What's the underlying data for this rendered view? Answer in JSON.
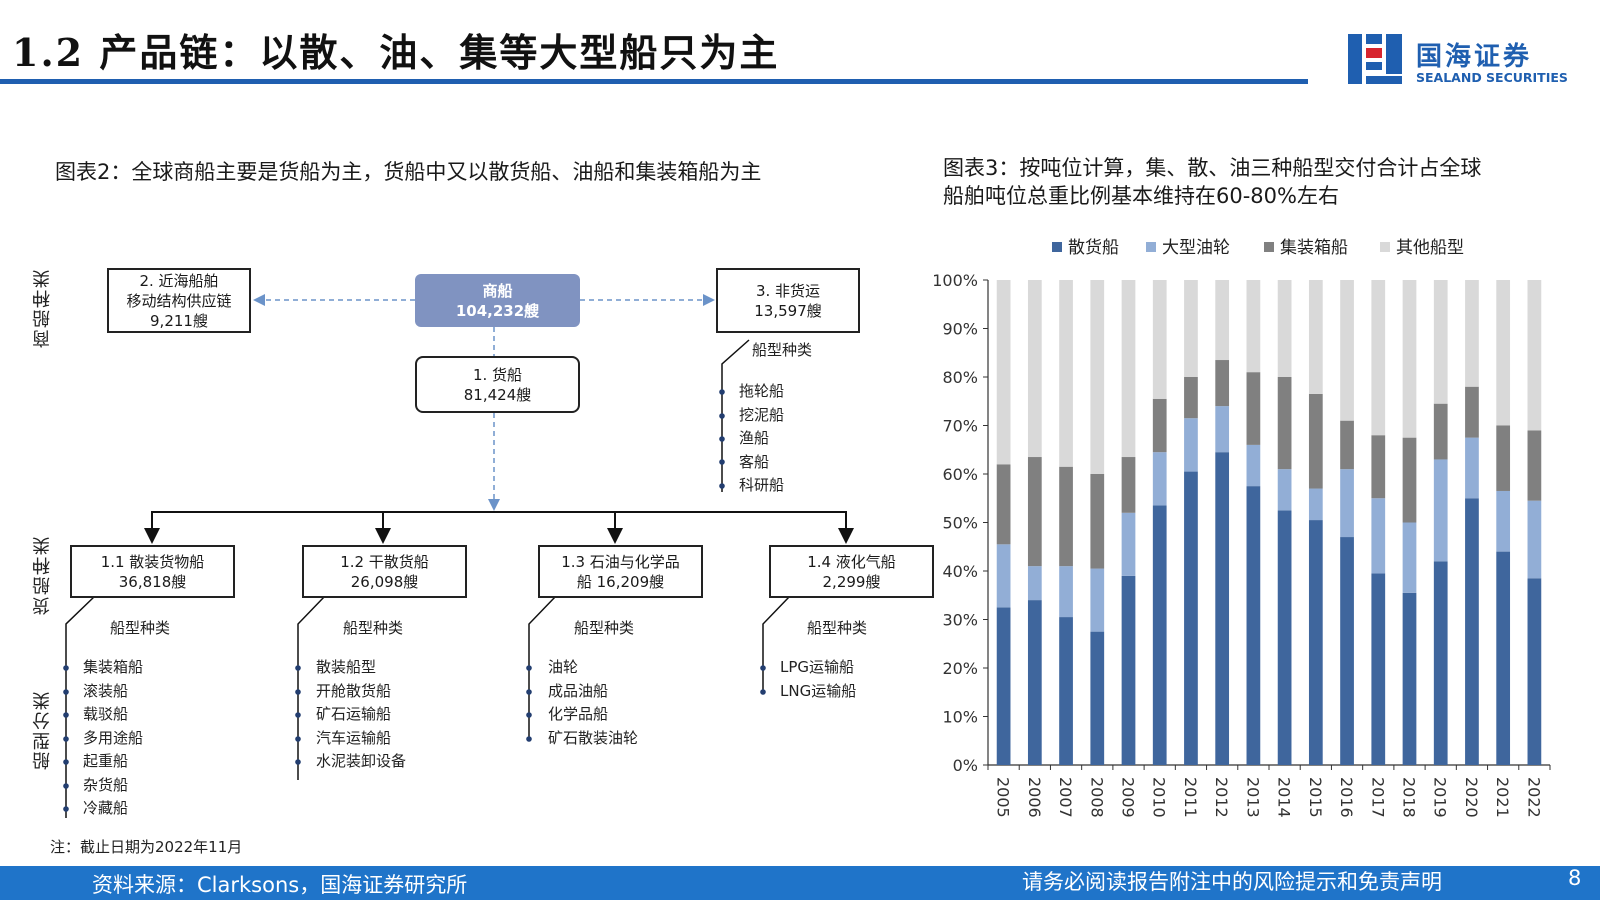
{
  "header": {
    "title": "1.2 产品链：以散、油、集等大型船只为主",
    "logo_cn": "国海证券",
    "logo_en": "SEALAND SECURITIES"
  },
  "figure2": {
    "title": "图表2：全球商船主要是货船为主，货船中又以散货船、油船和集装箱船为主",
    "side_labels": {
      "top": "商船种类",
      "middle": "货船种类",
      "bottom": "船型分类"
    },
    "root": {
      "line1": "商船",
      "line2": "104,232艘"
    },
    "near_sea": {
      "line1": "2. 近海船舶",
      "line2": "移动结构供应链",
      "line3": "9,211艘"
    },
    "non_cargo": {
      "line1": "3. 非货运",
      "line2": "13,597艘",
      "sub_label": "船型种类",
      "items": [
        "拖轮船",
        "挖泥船",
        "渔船",
        "客船",
        "科研船"
      ]
    },
    "cargo": {
      "line1": "1.    货船",
      "line2": "81,424艘"
    },
    "categories": [
      {
        "line1": "1.1 散装货物船",
        "line2": "36,818艘",
        "sub_label": "船型种类",
        "items": [
          "集装箱船",
          "滚装船",
          "载驳船",
          "多用途船",
          "起重船",
          "杂货船",
          "冷藏船"
        ]
      },
      {
        "line1": "1.2 干散货船",
        "line2": "26,098艘",
        "sub_label": "船型种类",
        "items": [
          "散装船型",
          "开舱散货船",
          "矿石运输船",
          "汽车运输船",
          "水泥装卸设备"
        ]
      },
      {
        "line1": "1.3 石油与化学品",
        "line2": "船 16,209艘",
        "sub_label": "船型种类",
        "items": [
          "油轮",
          "成品油船",
          "化学品船",
          "矿石散装油轮"
        ]
      },
      {
        "line1": "1.4 液化气船",
        "line2": "2,299艘",
        "sub_label": "船型种类",
        "items": [
          "LPG运输船",
          "LNG运输船"
        ]
      }
    ],
    "note": "注：截止日期为2022年11月"
  },
  "figure3": {
    "title_line1": "图表3：按吨位计算，集、散、油三种船型交付合计占全球",
    "title_line2": "船舶吨位总重比例基本维持在60-80%左右"
  },
  "chart_data": {
    "type": "bar",
    "stacked": true,
    "title": "",
    "xlabel": "",
    "ylabel": "",
    "ylim": [
      0,
      100
    ],
    "yticks": [
      "0%",
      "10%",
      "20%",
      "30%",
      "40%",
      "50%",
      "60%",
      "70%",
      "80%",
      "90%",
      "100%"
    ],
    "legend_position": "top",
    "categories": [
      "2005",
      "2006",
      "2007",
      "2008",
      "2009",
      "2010",
      "2011",
      "2012",
      "2013",
      "2014",
      "2015",
      "2016",
      "2017",
      "2018",
      "2019",
      "2020",
      "2021",
      "2022"
    ],
    "series": [
      {
        "name": "散货船",
        "color": "#3f669d",
        "values": [
          32.5,
          34,
          30.5,
          27.5,
          39,
          53.5,
          60.5,
          64.5,
          57.5,
          52.5,
          50.5,
          47,
          39.5,
          35.5,
          42,
          55,
          44,
          38.5
        ]
      },
      {
        "name": "大型油轮",
        "color": "#92aed6",
        "values": [
          13,
          7,
          10.5,
          13,
          13,
          11,
          11,
          9.5,
          8.5,
          8.5,
          6.5,
          14,
          15.5,
          14.5,
          21,
          12.5,
          12.5,
          16
        ]
      },
      {
        "name": "集装箱船",
        "color": "#808080",
        "values": [
          16.5,
          22.5,
          20.5,
          19.5,
          11.5,
          11,
          8.5,
          9.5,
          15,
          19,
          19.5,
          10,
          13,
          17.5,
          11.5,
          10.5,
          13.5,
          14.5
        ]
      },
      {
        "name": "其他船型",
        "color": "#d9d9d9",
        "values": [
          38,
          36.5,
          38.5,
          40,
          36.5,
          24.5,
          20,
          16.5,
          19,
          20,
          23.5,
          29,
          32,
          32.5,
          25.5,
          22,
          30,
          31
        ]
      }
    ]
  },
  "footer": {
    "source": "资料来源：Clarksons，国海证券研究所",
    "disclaimer": "请务必阅读报告附注中的风险提示和免责声明",
    "page": "8"
  }
}
